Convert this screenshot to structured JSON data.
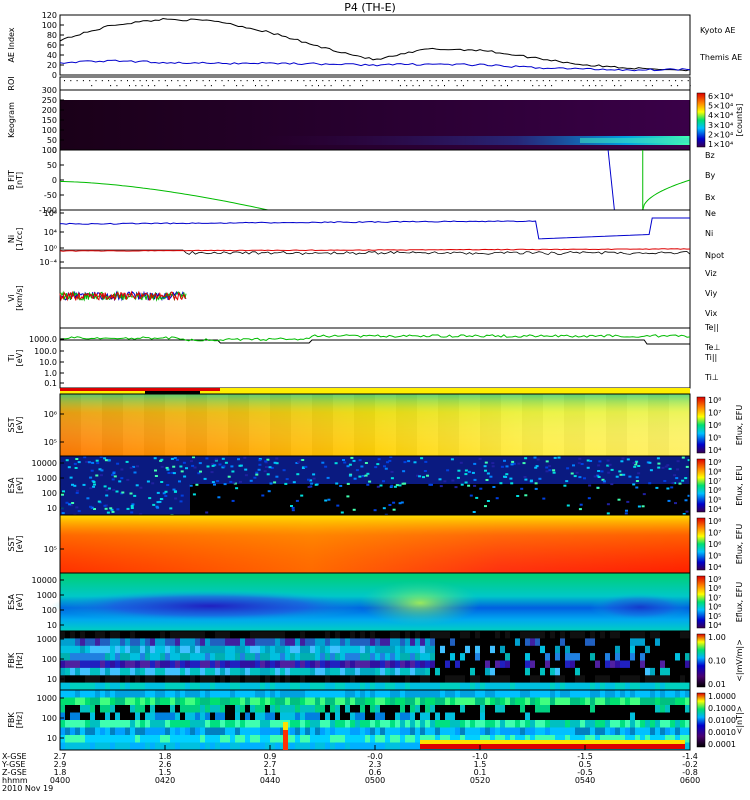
{
  "title": "P4 (TH-E)",
  "date_label": "2010 Nov 19",
  "colors": {
    "red": "#dd0000",
    "green": "#00bb00",
    "blue": "#0000cc",
    "black": "#000000",
    "orange": "#e07000"
  },
  "time_axis": {
    "row_labels": [
      "X-GSE",
      "Y-GSE",
      "Z-GSE",
      "hhmm"
    ],
    "ticks": [
      "0400",
      "0420",
      "0440",
      "0500",
      "0520",
      "0540",
      "0600"
    ],
    "x_gse": [
      "2.7",
      "1.8",
      "0.9",
      "-0.0",
      "-1.0",
      "-1.5",
      "-1.4"
    ],
    "y_gse": [
      "2.9",
      "2.6",
      "2.7",
      "2.3",
      "1.5",
      "0.5",
      "-0.2"
    ],
    "z_gse": [
      "1.8",
      "1.5",
      "1.1",
      "0.6",
      "0.1",
      "-0.5",
      "-0.8"
    ]
  },
  "chart_data": [
    {
      "id": "ae",
      "type": "line",
      "ylabel": "AE Index",
      "ylim": [
        0,
        120
      ],
      "yticks": [
        "120",
        "100",
        "80",
        "60",
        "40",
        "20",
        "0"
      ],
      "series": [
        {
          "name": "Kyoto AE",
          "color": "#0000cc"
        },
        {
          "name": "Themis AE",
          "color": "#000000"
        }
      ],
      "x": [
        "0400",
        "0410",
        "0420",
        "0430",
        "0440",
        "0450",
        "0500",
        "0510",
        "0520",
        "0530",
        "0540",
        "0550",
        "0600"
      ],
      "kyoto_ae": [
        70,
        100,
        112,
        108,
        85,
        55,
        30,
        52,
        50,
        35,
        20,
        13,
        10
      ],
      "themis_ae": [
        25,
        28,
        25,
        23,
        24,
        22,
        20,
        22,
        20,
        15,
        12,
        10,
        12
      ]
    },
    {
      "id": "roi",
      "type": "table",
      "ylabel": "ROI"
    },
    {
      "id": "keogram",
      "type": "heatmap",
      "ylabel": "Keogram",
      "units": "[counts]",
      "ylim": [
        0,
        300
      ],
      "yticks": [
        "300",
        "250",
        "200",
        "150",
        "100",
        "50",
        "0"
      ],
      "colorbar_ticks": [
        "6×10⁴",
        "5×10⁴",
        "4×10⁴",
        "3×10⁴",
        "2×10⁴",
        "1×10⁴"
      ]
    },
    {
      "id": "bfit",
      "type": "line",
      "ylabel": "B FIT",
      "units": "[nT]",
      "ylim": [
        -100,
        100
      ],
      "yticks": [
        "100",
        "50",
        "0",
        "-50",
        "-100"
      ],
      "series": [
        {
          "name": "Bz",
          "color": "#dd0000"
        },
        {
          "name": "By",
          "color": "#00bb00"
        },
        {
          "name": "Bx",
          "color": "#0000cc"
        }
      ]
    },
    {
      "id": "ni",
      "type": "line",
      "ylabel": "Ni",
      "units": "[1/cc]",
      "log": true,
      "yticks": [
        "10⁸",
        "10⁴",
        "10⁰",
        "10⁻⁴"
      ],
      "series": [
        {
          "name": "Ne",
          "color": "#dd0000"
        },
        {
          "name": "Ni",
          "color": "#000000"
        },
        {
          "name": "Npot",
          "color": "#0000cc"
        }
      ]
    },
    {
      "id": "vi",
      "type": "line",
      "ylabel": "Vi",
      "units": "[km/s]",
      "series": [
        {
          "name": "Viz",
          "color": "#dd0000"
        },
        {
          "name": "Viy",
          "color": "#00bb00"
        },
        {
          "name": "Vix",
          "color": "#0000cc"
        }
      ]
    },
    {
      "id": "ti",
      "type": "line",
      "ylabel": "Ti",
      "units": "[eV]",
      "log": true,
      "yticks": [
        "1000.0",
        "100.0",
        "10.0",
        "1.0",
        "0.1"
      ],
      "series": [
        {
          "name": "Te||",
          "color": "#000000"
        },
        {
          "name": "Te⊥",
          "color": "#dd0000"
        },
        {
          "name": "Ti||",
          "color": "#00bb00"
        },
        {
          "name": "Ti⊥",
          "color": "#0000cc"
        }
      ]
    },
    {
      "id": "sst_e",
      "type": "heatmap",
      "ylabel": "SST",
      "units": "[eV]",
      "yticks": [
        "10⁶",
        "10⁵"
      ],
      "colorbar_label": "Eflux, EFU",
      "colorbar_ticks": [
        "10⁸",
        "10⁷",
        "10⁶",
        "10⁵",
        "10⁴"
      ]
    },
    {
      "id": "esa_e",
      "type": "heatmap",
      "ylabel": "ESA",
      "units": "[eV]",
      "yticks": [
        "10000",
        "1000",
        "100",
        "10"
      ],
      "colorbar_label": "Eflux, EFU",
      "colorbar_ticks": [
        "10⁹",
        "10⁸",
        "10⁷",
        "10⁶",
        "10⁵",
        "10⁴"
      ]
    },
    {
      "id": "sst_i",
      "type": "heatmap",
      "ylabel": "SST",
      "units": "[eV]",
      "yticks": [
        "10⁵"
      ],
      "colorbar_label": "Eflux, EFU",
      "colorbar_ticks": [
        "10⁸",
        "10⁷",
        "10⁶",
        "10⁵",
        "10⁴"
      ]
    },
    {
      "id": "esa_i",
      "type": "heatmap",
      "ylabel": "ESA",
      "units": "[eV]",
      "yticks": [
        "10000",
        "1000",
        "100",
        "10"
      ],
      "colorbar_label": "Eflux, EFU",
      "colorbar_ticks": [
        "10⁹",
        "10⁸",
        "10⁷",
        "10⁶",
        "10⁵",
        "10⁴"
      ]
    },
    {
      "id": "fbk1",
      "type": "heatmap",
      "ylabel": "FBK",
      "units": "[Hz]",
      "yticks": [
        "1000",
        "100",
        "10"
      ],
      "colorbar_label": "<|mV/m|>",
      "colorbar_ticks": [
        "1.00",
        "0.10",
        "0.01"
      ]
    },
    {
      "id": "fbk2",
      "type": "heatmap",
      "ylabel": "FBK",
      "units": "[Hz]",
      "yticks": [
        "1000",
        "100",
        "10"
      ],
      "colorbar_label": "<|nT|>",
      "colorbar_ticks": [
        "1.0000",
        "0.1000",
        "0.0100",
        "0.0010",
        "0.0001"
      ]
    }
  ]
}
